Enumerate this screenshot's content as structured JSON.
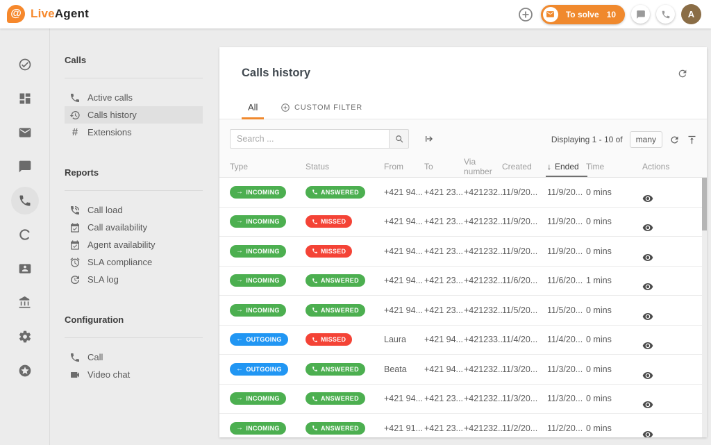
{
  "app": {
    "logo_live": "Live",
    "logo_agent": "Agent",
    "logo_at": "@",
    "to_solve_label": "To solve",
    "to_solve_count": "10",
    "avatar_letter": "A"
  },
  "icon_rail": [
    {
      "name": "tasks",
      "icon": "check-circle"
    },
    {
      "name": "dashboard",
      "icon": "dashboard"
    },
    {
      "name": "tickets",
      "icon": "mail"
    },
    {
      "name": "chats",
      "icon": "chat"
    },
    {
      "name": "calls",
      "icon": "phone",
      "active": true
    },
    {
      "name": "social",
      "icon": "ring"
    },
    {
      "name": "contacts",
      "icon": "contact-card"
    },
    {
      "name": "billing",
      "icon": "bank"
    },
    {
      "name": "settings",
      "icon": "gear"
    },
    {
      "name": "upgrade",
      "icon": "star-circle"
    }
  ],
  "sidebar": {
    "sections": [
      {
        "title": "Calls",
        "items": [
          {
            "label": "Active calls",
            "icon": "phone"
          },
          {
            "label": "Calls history",
            "icon": "history",
            "selected": true
          },
          {
            "label": "Extensions",
            "icon": "hash"
          }
        ]
      },
      {
        "title": "Reports",
        "items": [
          {
            "label": "Call load",
            "icon": "phone-load"
          },
          {
            "label": "Call availability",
            "icon": "calendar-check"
          },
          {
            "label": "Agent availability",
            "icon": "calendar-check"
          },
          {
            "label": "SLA compliance",
            "icon": "alarm"
          },
          {
            "label": "SLA log",
            "icon": "history-update"
          }
        ]
      },
      {
        "title": "Configuration",
        "items": [
          {
            "label": "Call",
            "icon": "phone"
          },
          {
            "label": "Video chat",
            "icon": "videocam"
          }
        ]
      }
    ]
  },
  "main": {
    "title": "Calls history",
    "tabs": [
      {
        "label": "All",
        "active": true
      },
      {
        "label": "CUSTOM FILTER",
        "icon": "plus-circle"
      }
    ],
    "toolbar": {
      "search_placeholder": "Search ...",
      "displaying_text": "Displaying 1 - 10 of",
      "count_button_label": "many"
    },
    "table": {
      "columns": [
        "Type",
        "Status",
        "From",
        "To",
        "Via number",
        "Created",
        "Ended",
        "Time",
        "Actions"
      ],
      "sorted_column": "Ended",
      "sort_direction": "desc",
      "sort_arrow": "↓",
      "rows": [
        {
          "type": "INCOMING",
          "direction": "in",
          "status": "ANSWERED",
          "from": "+421 94...",
          "to": "+421 23...",
          "via": "+421232...",
          "created": "11/9/20...",
          "ended": "11/9/20...",
          "time": "0 mins"
        },
        {
          "type": "INCOMING",
          "direction": "in",
          "status": "MISSED",
          "from": "+421 94...",
          "to": "+421 23...",
          "via": "+421232...",
          "created": "11/9/20...",
          "ended": "11/9/20...",
          "time": "0 mins"
        },
        {
          "type": "INCOMING",
          "direction": "in",
          "status": "MISSED",
          "from": "+421 94...",
          "to": "+421 23...",
          "via": "+421232...",
          "created": "11/9/20...",
          "ended": "11/9/20...",
          "time": "0 mins"
        },
        {
          "type": "INCOMING",
          "direction": "in",
          "status": "ANSWERED",
          "from": "+421 94...",
          "to": "+421 23...",
          "via": "+421232...",
          "created": "11/6/20...",
          "ended": "11/6/20...",
          "time": "1 mins"
        },
        {
          "type": "INCOMING",
          "direction": "in",
          "status": "ANSWERED",
          "from": "+421 94...",
          "to": "+421 23...",
          "via": "+421232...",
          "created": "11/5/20...",
          "ended": "11/5/20...",
          "time": "0 mins"
        },
        {
          "type": "OUTGOING",
          "direction": "out",
          "status": "MISSED",
          "from": "Laura",
          "to": "+421 94...",
          "via": "+421233...",
          "created": "11/4/20...",
          "ended": "11/4/20...",
          "time": "0 mins"
        },
        {
          "type": "OUTGOING",
          "direction": "out",
          "status": "ANSWERED",
          "from": "Beata",
          "to": "+421 94...",
          "via": "+421232...",
          "created": "11/3/20...",
          "ended": "11/3/20...",
          "time": "0 mins"
        },
        {
          "type": "INCOMING",
          "direction": "in",
          "status": "ANSWERED",
          "from": "+421 94...",
          "to": "+421 23...",
          "via": "+421232...",
          "created": "11/3/20...",
          "ended": "11/3/20...",
          "time": "0 mins"
        },
        {
          "type": "INCOMING",
          "direction": "in",
          "status": "ANSWERED",
          "from": "+421 91...",
          "to": "+421 23...",
          "via": "+421232...",
          "created": "11/2/20...",
          "ended": "11/2/20...",
          "time": "0 mins"
        }
      ]
    }
  },
  "colors": {
    "accent_orange": "#f0892d",
    "logo_orange": "#f6882c",
    "badge_green": "#4caf50",
    "badge_red": "#f44336",
    "badge_blue": "#2196f3",
    "avatar_brown": "#8a6d46"
  }
}
